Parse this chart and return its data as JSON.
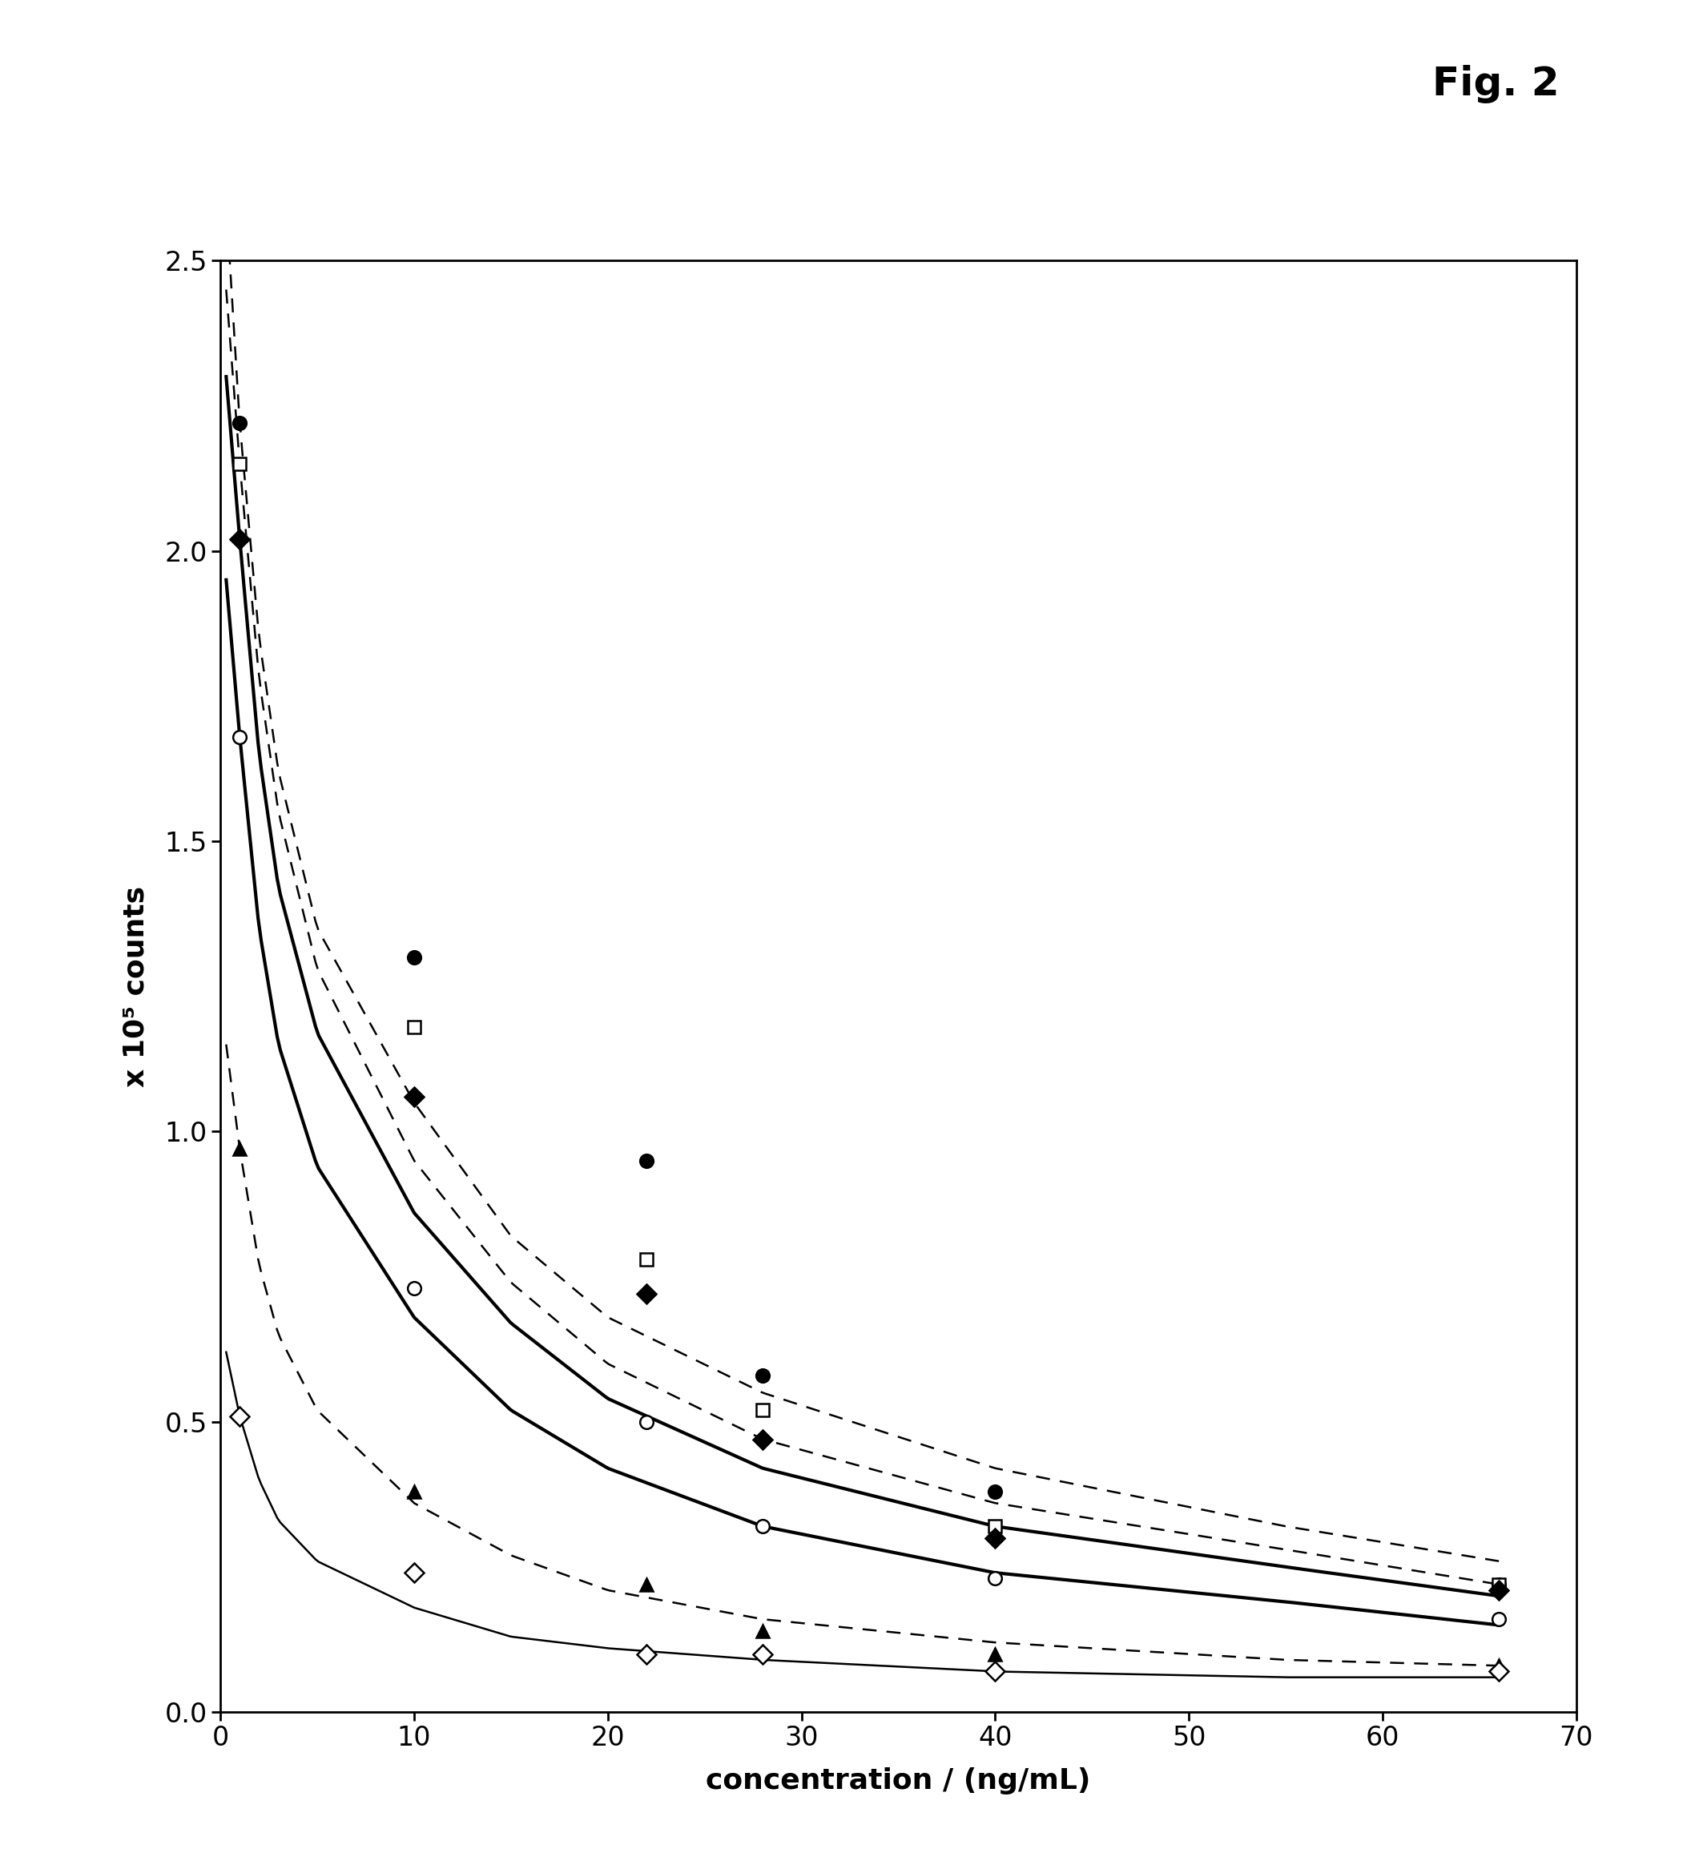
{
  "title": "Fig. 2",
  "xlabel": "concentration / (ng/mL)",
  "ylabel": "x 10⁵ counts",
  "xlim": [
    0,
    70
  ],
  "ylim": [
    0,
    2.5
  ],
  "yticks": [
    0.0,
    0.5,
    1.0,
    1.5,
    2.0,
    2.5
  ],
  "xticks": [
    0,
    10,
    20,
    30,
    40,
    50,
    60,
    70
  ],
  "series": [
    {
      "name": "filled_circle",
      "x": [
        1,
        10,
        22,
        28,
        40,
        66
      ],
      "y": [
        2.22,
        1.3,
        0.95,
        0.58,
        0.38,
        0.22
      ],
      "marker": "o",
      "filled": true,
      "curve_x": [
        0.3,
        1,
        2,
        3,
        5,
        10,
        15,
        20,
        28,
        40,
        55,
        66
      ],
      "curve_y": [
        2.6,
        2.22,
        1.85,
        1.62,
        1.35,
        1.05,
        0.82,
        0.68,
        0.55,
        0.42,
        0.32,
        0.26
      ],
      "linestyle": "dashed",
      "linewidth": 1.8
    },
    {
      "name": "open_square",
      "x": [
        1,
        10,
        22,
        28,
        40,
        66
      ],
      "y": [
        2.15,
        1.18,
        0.78,
        0.52,
        0.32,
        0.22
      ],
      "marker": "s",
      "filled": false,
      "curve_x": [
        0.3,
        1,
        2,
        3,
        5,
        10,
        15,
        20,
        28,
        40,
        55,
        66
      ],
      "curve_y": [
        2.45,
        2.15,
        1.78,
        1.55,
        1.28,
        0.95,
        0.74,
        0.6,
        0.47,
        0.36,
        0.28,
        0.22
      ],
      "linestyle": "dashed",
      "linewidth": 1.8
    },
    {
      "name": "filled_diamond",
      "x": [
        1,
        10,
        22,
        28,
        40,
        66
      ],
      "y": [
        2.02,
        1.06,
        0.72,
        0.47,
        0.3,
        0.21
      ],
      "marker": "D",
      "filled": true,
      "curve_x": [
        0.3,
        1,
        2,
        3,
        5,
        10,
        15,
        20,
        28,
        40,
        55,
        66
      ],
      "curve_y": [
        2.3,
        2.02,
        1.65,
        1.42,
        1.17,
        0.86,
        0.67,
        0.54,
        0.42,
        0.32,
        0.25,
        0.2
      ],
      "linestyle": "solid",
      "linewidth": 3.0
    },
    {
      "name": "open_circle",
      "x": [
        1,
        10,
        22,
        28,
        40,
        66
      ],
      "y": [
        1.68,
        0.73,
        0.5,
        0.32,
        0.23,
        0.16
      ],
      "marker": "o",
      "filled": false,
      "curve_x": [
        0.3,
        1,
        2,
        3,
        5,
        10,
        15,
        20,
        28,
        40,
        55,
        66
      ],
      "curve_y": [
        1.95,
        1.68,
        1.35,
        1.15,
        0.94,
        0.68,
        0.52,
        0.42,
        0.32,
        0.24,
        0.19,
        0.15
      ],
      "linestyle": "solid",
      "linewidth": 3.0
    },
    {
      "name": "filled_triangle",
      "x": [
        1,
        10,
        22,
        28,
        40,
        66
      ],
      "y": [
        0.97,
        0.38,
        0.22,
        0.14,
        0.1,
        0.08
      ],
      "marker": "^",
      "filled": true,
      "curve_x": [
        0.3,
        1,
        2,
        3,
        5,
        10,
        15,
        20,
        28,
        40,
        55,
        66
      ],
      "curve_y": [
        1.15,
        0.97,
        0.77,
        0.65,
        0.52,
        0.36,
        0.27,
        0.21,
        0.16,
        0.12,
        0.09,
        0.08
      ],
      "linestyle": "dashed",
      "linewidth": 1.8
    },
    {
      "name": "open_diamond",
      "x": [
        1,
        10,
        22,
        28,
        40,
        66
      ],
      "y": [
        0.51,
        0.24,
        0.1,
        0.1,
        0.07,
        0.07
      ],
      "marker": "D",
      "filled": false,
      "curve_x": [
        0.3,
        1,
        2,
        3,
        5,
        10,
        15,
        20,
        28,
        40,
        55,
        66
      ],
      "curve_y": [
        0.62,
        0.51,
        0.4,
        0.33,
        0.26,
        0.18,
        0.13,
        0.11,
        0.09,
        0.07,
        0.06,
        0.06
      ],
      "linestyle": "solid",
      "linewidth": 1.8
    }
  ],
  "background_color": "#ffffff",
  "marker_size": 12,
  "marker_edgewidth": 1.8,
  "fig2_fontsize": 36,
  "axis_label_fontsize": 26,
  "tick_label_fontsize": 24,
  "spine_linewidth": 2.0
}
